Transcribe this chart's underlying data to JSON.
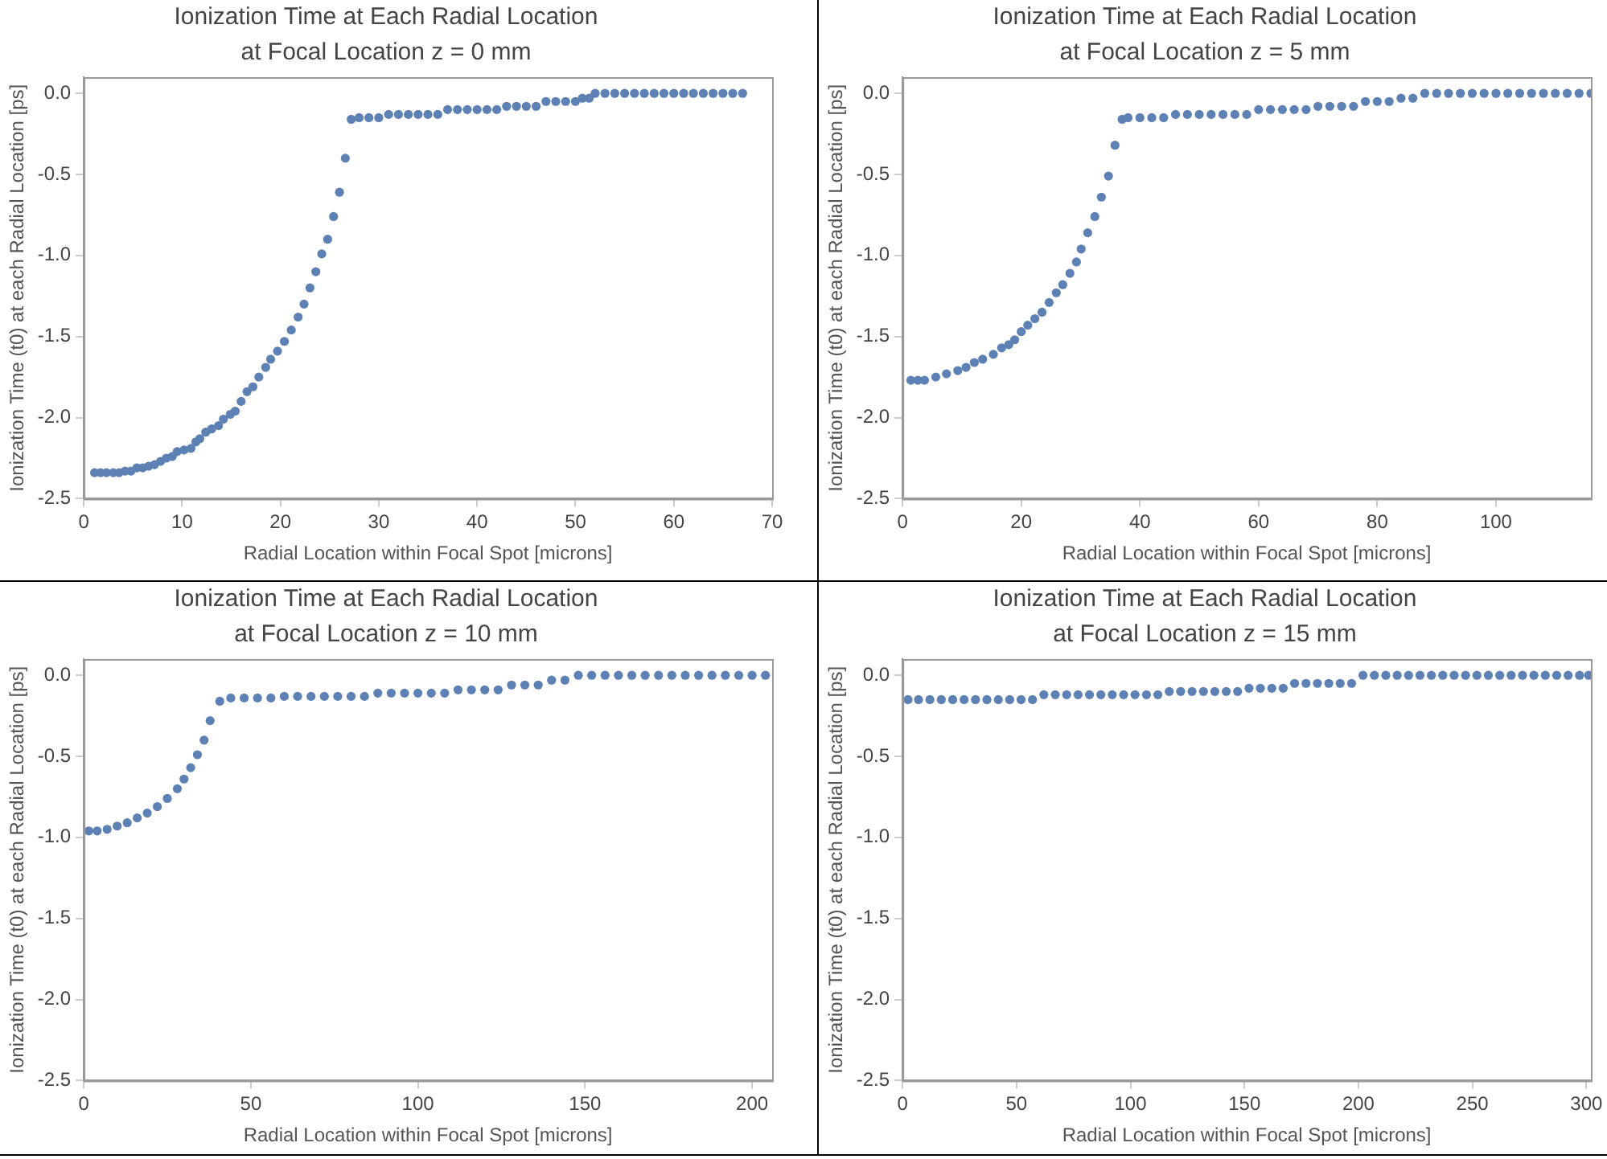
{
  "chart_data": [
    {
      "type": "scatter",
      "title": "Ionization Time at Each Radial Location",
      "subtitle": "at Focal Location z = 0 mm",
      "xlabel": "Radial Location within Focal Spot [microns]",
      "ylabel": "Ionization Time (t0) at each Radial Location [ps]",
      "xlim": [
        0,
        70
      ],
      "xticks": [
        0,
        10,
        20,
        30,
        40,
        50,
        60,
        70
      ],
      "ylim": [
        -2.5,
        0.1
      ],
      "yticks": [
        {
          "value": -2.5,
          "label": "-2.5"
        },
        {
          "value": -2,
          "label": "-2.0"
        },
        {
          "value": -1.5,
          "label": "-1.5"
        },
        {
          "value": -1,
          "label": "-1.0"
        },
        {
          "value": -0.5,
          "label": "-0.5"
        },
        {
          "value": 0,
          "label": "0.0"
        }
      ],
      "grid": false,
      "marker": "circle",
      "series": [
        {
          "color": "#5e81b5",
          "x": [
            1.1,
            1.7,
            2.3,
            3.0,
            3.6,
            4.2,
            4.8,
            5.4,
            6.0,
            6.6,
            7.2,
            7.8,
            8.4,
            9.0,
            9.5,
            10.2,
            10.9,
            11.4,
            11.8,
            12.4,
            13.0,
            13.7,
            14.2,
            14.9,
            15.4,
            16.0,
            16.6,
            17.2,
            17.8,
            18.5,
            19.0,
            19.7,
            20.4,
            21.1,
            21.8,
            22.4,
            23.0,
            23.6,
            24.2,
            24.8,
            25.4,
            26.0,
            26.6,
            27.2,
            28,
            29,
            30,
            31,
            32,
            33,
            34,
            35,
            36,
            37,
            38,
            39,
            40,
            41,
            42,
            43,
            44,
            45,
            46,
            47,
            48,
            49,
            50,
            50.7,
            51.4,
            52,
            53,
            54,
            55,
            56,
            57,
            58,
            59,
            60,
            61,
            62,
            63,
            64,
            65,
            66,
            67
          ],
          "values": [
            -2.34,
            -2.34,
            -2.34,
            -2.34,
            -2.34,
            -2.33,
            -2.33,
            -2.31,
            -2.31,
            -2.3,
            -2.29,
            -2.27,
            -2.25,
            -2.24,
            -2.21,
            -2.2,
            -2.19,
            -2.15,
            -2.13,
            -2.09,
            -2.07,
            -2.05,
            -2.01,
            -1.98,
            -1.96,
            -1.9,
            -1.84,
            -1.81,
            -1.75,
            -1.69,
            -1.64,
            -1.59,
            -1.53,
            -1.46,
            -1.38,
            -1.3,
            -1.2,
            -1.1,
            -0.99,
            -0.9,
            -0.76,
            -0.61,
            -0.4,
            -0.16,
            -0.15,
            -0.15,
            -0.15,
            -0.13,
            -0.13,
            -0.13,
            -0.13,
            -0.13,
            -0.13,
            -0.1,
            -0.1,
            -0.1,
            -0.1,
            -0.1,
            -0.1,
            -0.08,
            -0.08,
            -0.08,
            -0.08,
            -0.05,
            -0.05,
            -0.05,
            -0.05,
            -0.03,
            -0.03,
            0,
            0,
            0,
            0,
            0,
            0,
            0,
            0,
            0,
            0,
            0,
            0,
            0,
            0,
            0,
            0
          ]
        }
      ]
    },
    {
      "type": "scatter",
      "title": "Ionization Time at Each Radial Location",
      "subtitle": "at Focal Location z = 5 mm",
      "xlabel": "Radial Location within Focal Spot [microns]",
      "ylabel": "Ionization Time (t0) at each Radial Location [ps]",
      "xlim": [
        0,
        116
      ],
      "xticks": [
        0,
        20,
        40,
        60,
        80,
        100
      ],
      "ylim": [
        -2.5,
        0.1
      ],
      "yticks": [
        {
          "value": -2.5,
          "label": "-2.5"
        },
        {
          "value": -2,
          "label": "-2.0"
        },
        {
          "value": -1.5,
          "label": "-1.5"
        },
        {
          "value": -1,
          "label": "-1.0"
        },
        {
          "value": -0.5,
          "label": "-0.5"
        },
        {
          "value": 0,
          "label": "0.0"
        }
      ],
      "grid": false,
      "marker": "circle",
      "series": [
        {
          "color": "#5e81b5",
          "x": [
            1.4,
            2.6,
            3.7,
            5.6,
            7.4,
            9.3,
            10.7,
            12.1,
            13.5,
            15.3,
            16.7,
            17.9,
            18.9,
            20.0,
            21.1,
            22.3,
            23.5,
            24.7,
            25.9,
            27.0,
            28.2,
            29.3,
            30.1,
            31.2,
            32.4,
            33.5,
            34.7,
            35.8,
            37.0,
            38,
            40,
            42,
            44,
            46,
            48,
            50,
            52,
            54,
            56,
            58,
            60,
            62,
            64,
            66,
            68,
            70,
            72,
            74,
            76,
            78,
            80,
            82,
            84,
            86,
            88,
            90,
            92,
            94,
            96,
            98,
            100,
            102,
            104,
            106,
            108,
            110,
            112,
            114,
            116
          ],
          "values": [
            -1.77,
            -1.77,
            -1.77,
            -1.75,
            -1.73,
            -1.71,
            -1.69,
            -1.66,
            -1.64,
            -1.61,
            -1.57,
            -1.55,
            -1.52,
            -1.47,
            -1.43,
            -1.39,
            -1.35,
            -1.29,
            -1.23,
            -1.18,
            -1.11,
            -1.04,
            -0.96,
            -0.86,
            -0.76,
            -0.64,
            -0.51,
            -0.32,
            -0.16,
            -0.15,
            -0.15,
            -0.15,
            -0.15,
            -0.13,
            -0.13,
            -0.13,
            -0.13,
            -0.13,
            -0.13,
            -0.13,
            -0.1,
            -0.1,
            -0.1,
            -0.1,
            -0.1,
            -0.08,
            -0.08,
            -0.08,
            -0.08,
            -0.05,
            -0.05,
            -0.05,
            -0.03,
            -0.03,
            0,
            0,
            0,
            0,
            0,
            0,
            0,
            0,
            0,
            0,
            0,
            0,
            0,
            0,
            0
          ]
        }
      ]
    },
    {
      "type": "scatter",
      "title": "Ionization Time at Each Radial Location",
      "subtitle": "at Focal Location z = 10 mm",
      "xlabel": "Radial Location within Focal Spot [microns]",
      "ylabel": "Ionization Time (t0) at each Radial Location [ps]",
      "xlim": [
        0,
        206
      ],
      "xticks": [
        0,
        50,
        100,
        150,
        200
      ],
      "ylim": [
        -2.5,
        0.1
      ],
      "yticks": [
        {
          "value": -2.5,
          "label": "-2.5"
        },
        {
          "value": -2,
          "label": "-2.0"
        },
        {
          "value": -1.5,
          "label": "-1.5"
        },
        {
          "value": -1,
          "label": "-1.0"
        },
        {
          "value": -0.5,
          "label": "-0.5"
        },
        {
          "value": 0,
          "label": "0.0"
        }
      ],
      "grid": false,
      "marker": "circle",
      "series": [
        {
          "color": "#5e81b5",
          "x": [
            1.5,
            4,
            7,
            10,
            13,
            16,
            19,
            22,
            25,
            28,
            30,
            32,
            34,
            36,
            37.8,
            40.7,
            44,
            48,
            52,
            56,
            60,
            64,
            68,
            72,
            76,
            80,
            84,
            88,
            92,
            96,
            100,
            104,
            108,
            112,
            116,
            120,
            124,
            128,
            132,
            136,
            140,
            144,
            148,
            152,
            156,
            160,
            164,
            168,
            172,
            176,
            180,
            184,
            188,
            192,
            196,
            200,
            204
          ],
          "values": [
            -0.96,
            -0.96,
            -0.95,
            -0.93,
            -0.91,
            -0.88,
            -0.85,
            -0.81,
            -0.76,
            -0.7,
            -0.64,
            -0.57,
            -0.49,
            -0.4,
            -0.28,
            -0.16,
            -0.14,
            -0.14,
            -0.14,
            -0.14,
            -0.13,
            -0.13,
            -0.13,
            -0.13,
            -0.13,
            -0.13,
            -0.13,
            -0.11,
            -0.11,
            -0.11,
            -0.11,
            -0.11,
            -0.11,
            -0.09,
            -0.09,
            -0.09,
            -0.09,
            -0.06,
            -0.06,
            -0.06,
            -0.03,
            -0.03,
            0,
            0,
            0,
            0,
            0,
            0,
            0,
            0,
            0,
            0,
            0,
            0,
            0,
            0,
            0
          ]
        }
      ]
    },
    {
      "type": "scatter",
      "title": "Ionization Time at Each Radial Location",
      "subtitle": "at Focal Location z = 15 mm",
      "xlabel": "Radial Location within Focal Spot [microns]",
      "ylabel": "Ionization Time (t0) at each Radial Location [ps]",
      "xlim": [
        0,
        302
      ],
      "xticks": [
        0,
        50,
        100,
        150,
        200,
        250,
        300
      ],
      "ylim": [
        -2.5,
        0.1
      ],
      "yticks": [
        {
          "value": -2.5,
          "label": "-2.5"
        },
        {
          "value": -2,
          "label": "-2.0"
        },
        {
          "value": -1.5,
          "label": "-1.5"
        },
        {
          "value": -1,
          "label": "-1.0"
        },
        {
          "value": -0.5,
          "label": "-0.5"
        },
        {
          "value": 0,
          "label": "0.0"
        }
      ],
      "grid": false,
      "marker": "circle",
      "series": [
        {
          "color": "#5e81b5",
          "x": [
            2.4,
            7,
            12,
            17,
            22,
            27,
            32,
            37,
            42,
            47,
            52,
            57,
            62,
            67,
            72,
            77,
            82,
            87,
            92,
            97,
            102,
            107,
            112,
            117,
            122,
            127,
            132,
            137,
            142,
            147,
            152,
            157,
            162,
            167,
            172,
            177,
            182,
            187,
            192,
            197,
            202,
            207,
            212,
            217,
            222,
            227,
            232,
            237,
            242,
            247,
            252,
            257,
            262,
            267,
            272,
            277,
            282,
            287,
            292,
            297,
            301
          ],
          "values": [
            -0.15,
            -0.15,
            -0.15,
            -0.15,
            -0.15,
            -0.15,
            -0.15,
            -0.15,
            -0.15,
            -0.15,
            -0.15,
            -0.15,
            -0.12,
            -0.12,
            -0.12,
            -0.12,
            -0.12,
            -0.12,
            -0.12,
            -0.12,
            -0.12,
            -0.12,
            -0.12,
            -0.1,
            -0.1,
            -0.1,
            -0.1,
            -0.1,
            -0.1,
            -0.1,
            -0.08,
            -0.08,
            -0.08,
            -0.08,
            -0.05,
            -0.05,
            -0.05,
            -0.05,
            -0.05,
            -0.05,
            0,
            0,
            0,
            0,
            0,
            0,
            0,
            0,
            0,
            0,
            0,
            0,
            0,
            0,
            0,
            0,
            0,
            0,
            0,
            0,
            0
          ]
        }
      ]
    }
  ]
}
